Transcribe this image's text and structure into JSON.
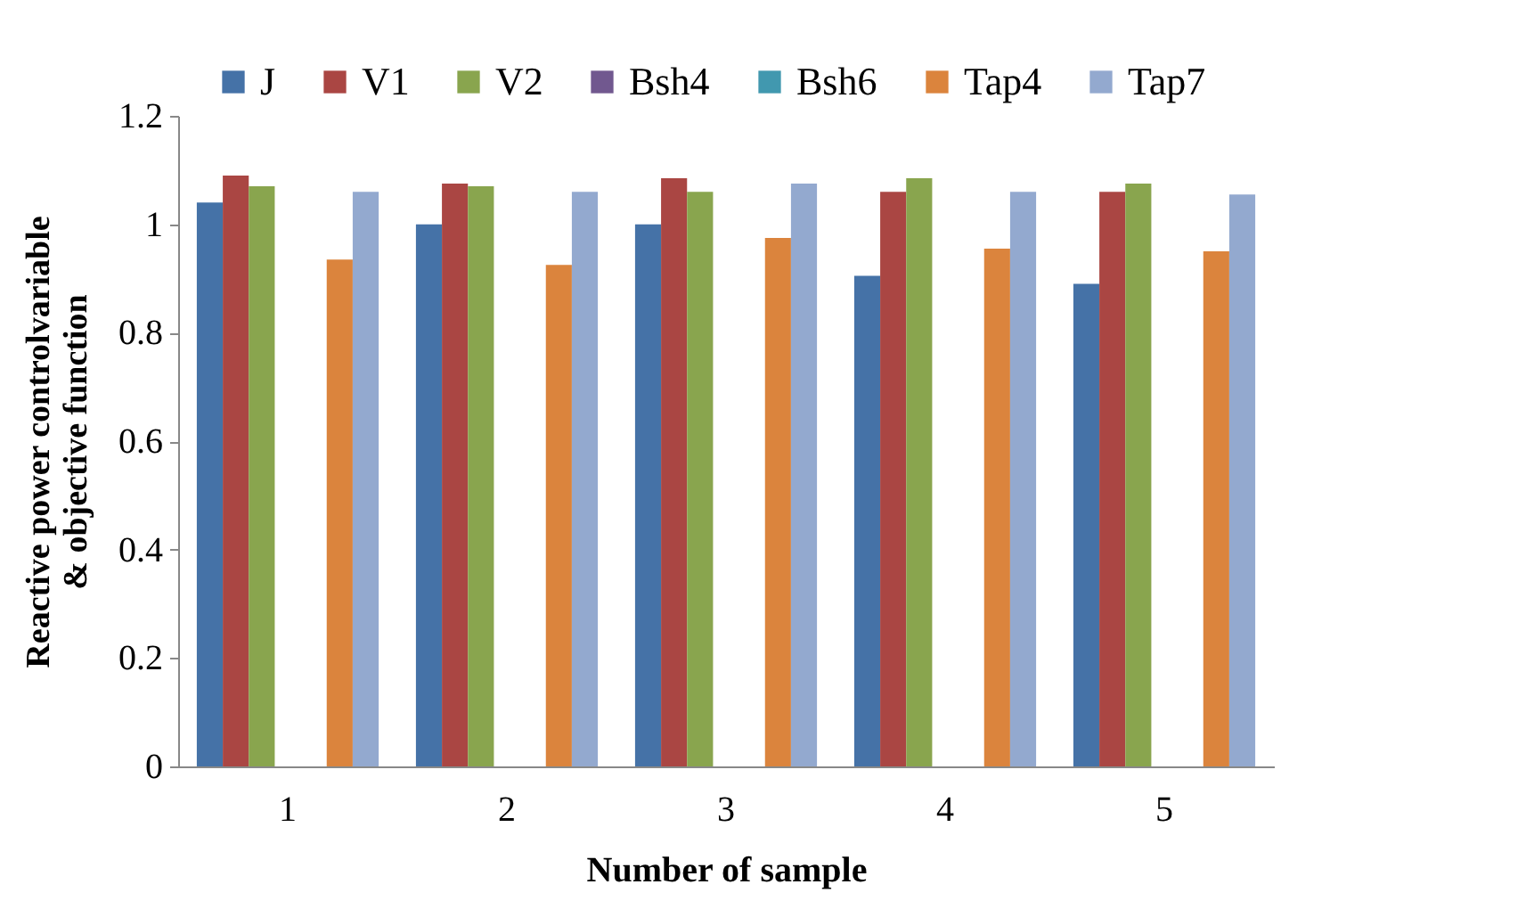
{
  "chart_data": {
    "type": "bar",
    "xlabel": "Number of sample",
    "ylabel": "Reactive power controlvariable\n& objective function",
    "categories": [
      "1",
      "2",
      "3",
      "4",
      "5"
    ],
    "series": [
      {
        "name": "J",
        "color": "#4572a7",
        "values": [
          1.04,
          1.0,
          1.0,
          0.905,
          0.89
        ]
      },
      {
        "name": "V1",
        "color": "#aa4643",
        "values": [
          1.09,
          1.075,
          1.085,
          1.06,
          1.06
        ]
      },
      {
        "name": "V2",
        "color": "#89a54e",
        "values": [
          1.07,
          1.07,
          1.06,
          1.085,
          1.075
        ]
      },
      {
        "name": "Bsh4",
        "color": "#71588f",
        "values": [
          null,
          null,
          null,
          null,
          null
        ]
      },
      {
        "name": "Bsh6",
        "color": "#4198af",
        "values": [
          null,
          null,
          null,
          null,
          null
        ]
      },
      {
        "name": "Tap4",
        "color": "#db843d",
        "values": [
          0.935,
          0.925,
          0.975,
          0.955,
          0.95
        ]
      },
      {
        "name": "Tap7",
        "color": "#93a9cf",
        "values": [
          1.06,
          1.06,
          1.075,
          1.06,
          1.055
        ]
      }
    ],
    "ylim": [
      0,
      1.2
    ],
    "yticks": [
      0,
      0.2,
      0.4,
      0.6,
      0.8,
      1,
      1.2
    ],
    "grid": false,
    "legend": "top"
  }
}
